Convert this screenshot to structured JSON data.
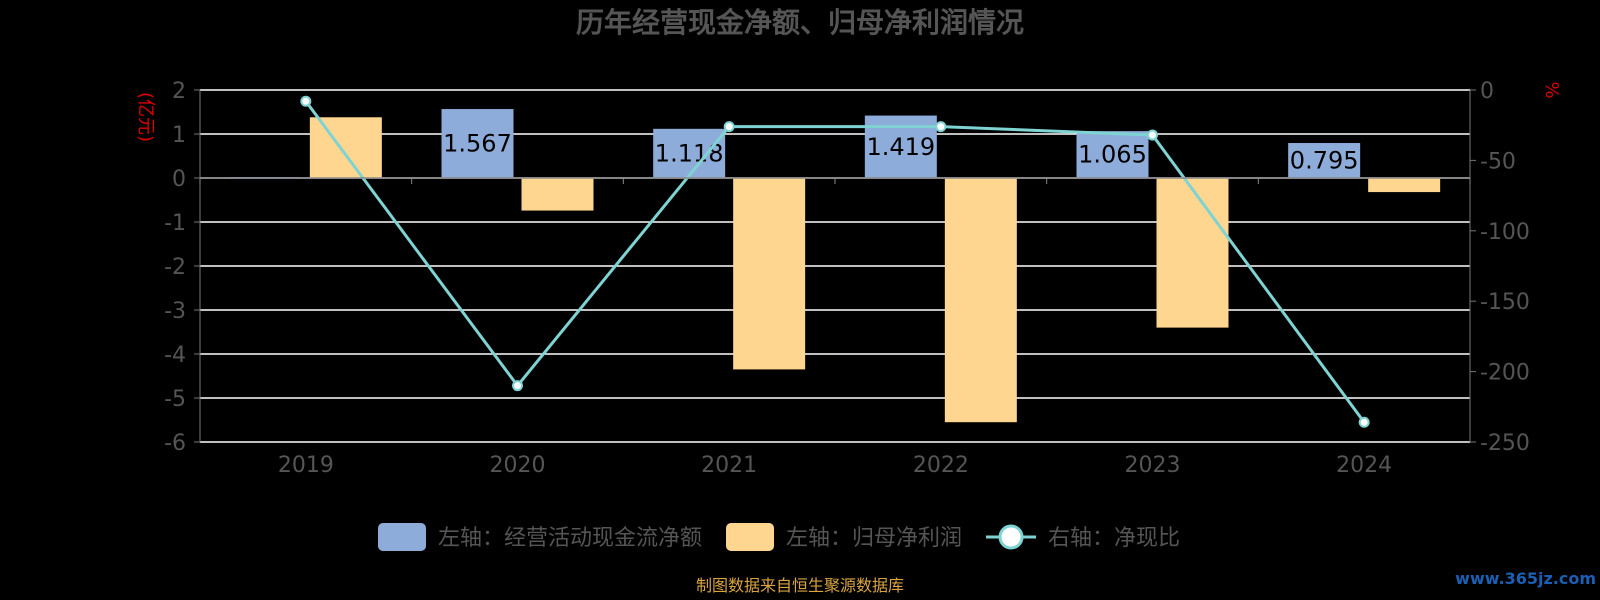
{
  "chart_data": {
    "type": "bar",
    "title": "历年经营现金净额、归母净利润情况",
    "categories": [
      "2019",
      "2020",
      "2021",
      "2022",
      "2023",
      "2024"
    ],
    "left_axis": {
      "unit_label": "(亿元)",
      "ylim": [
        -6,
        2
      ],
      "ticks": [
        "2",
        "1",
        "0",
        "-1",
        "-2",
        "-3",
        "-4",
        "-5",
        "-6"
      ]
    },
    "right_axis": {
      "unit_label": "%",
      "ylim": [
        -250,
        0
      ],
      "ticks": [
        "0",
        "-50",
        "-100",
        "-150",
        "-200",
        "-250"
      ]
    },
    "series": [
      {
        "name": "左轴：经营活动现金流净额",
        "type": "bar",
        "axis": "left",
        "color": "#8eacd9",
        "values": [
          0.02,
          1.567,
          1.118,
          1.419,
          1.065,
          0.795
        ],
        "labels": [
          "",
          "1.567",
          "1.118",
          "1.419",
          "1.065",
          "0.795"
        ]
      },
      {
        "name": "左轴：归母净利润",
        "type": "bar",
        "axis": "left",
        "color": "#ffd68f",
        "values": [
          1.38,
          -0.74,
          -4.35,
          -5.55,
          -3.4,
          -0.32
        ]
      },
      {
        "name": "右轴：净现比",
        "type": "line",
        "axis": "right",
        "color": "#7fd3d3",
        "values": [
          -8,
          -210,
          -26,
          -26,
          -32,
          -236
        ]
      }
    ],
    "grid": true,
    "legend_position": "bottom"
  },
  "footer": {
    "source": "制图数据来自恒生聚源数据库",
    "watermark": "www.365jz.com"
  }
}
